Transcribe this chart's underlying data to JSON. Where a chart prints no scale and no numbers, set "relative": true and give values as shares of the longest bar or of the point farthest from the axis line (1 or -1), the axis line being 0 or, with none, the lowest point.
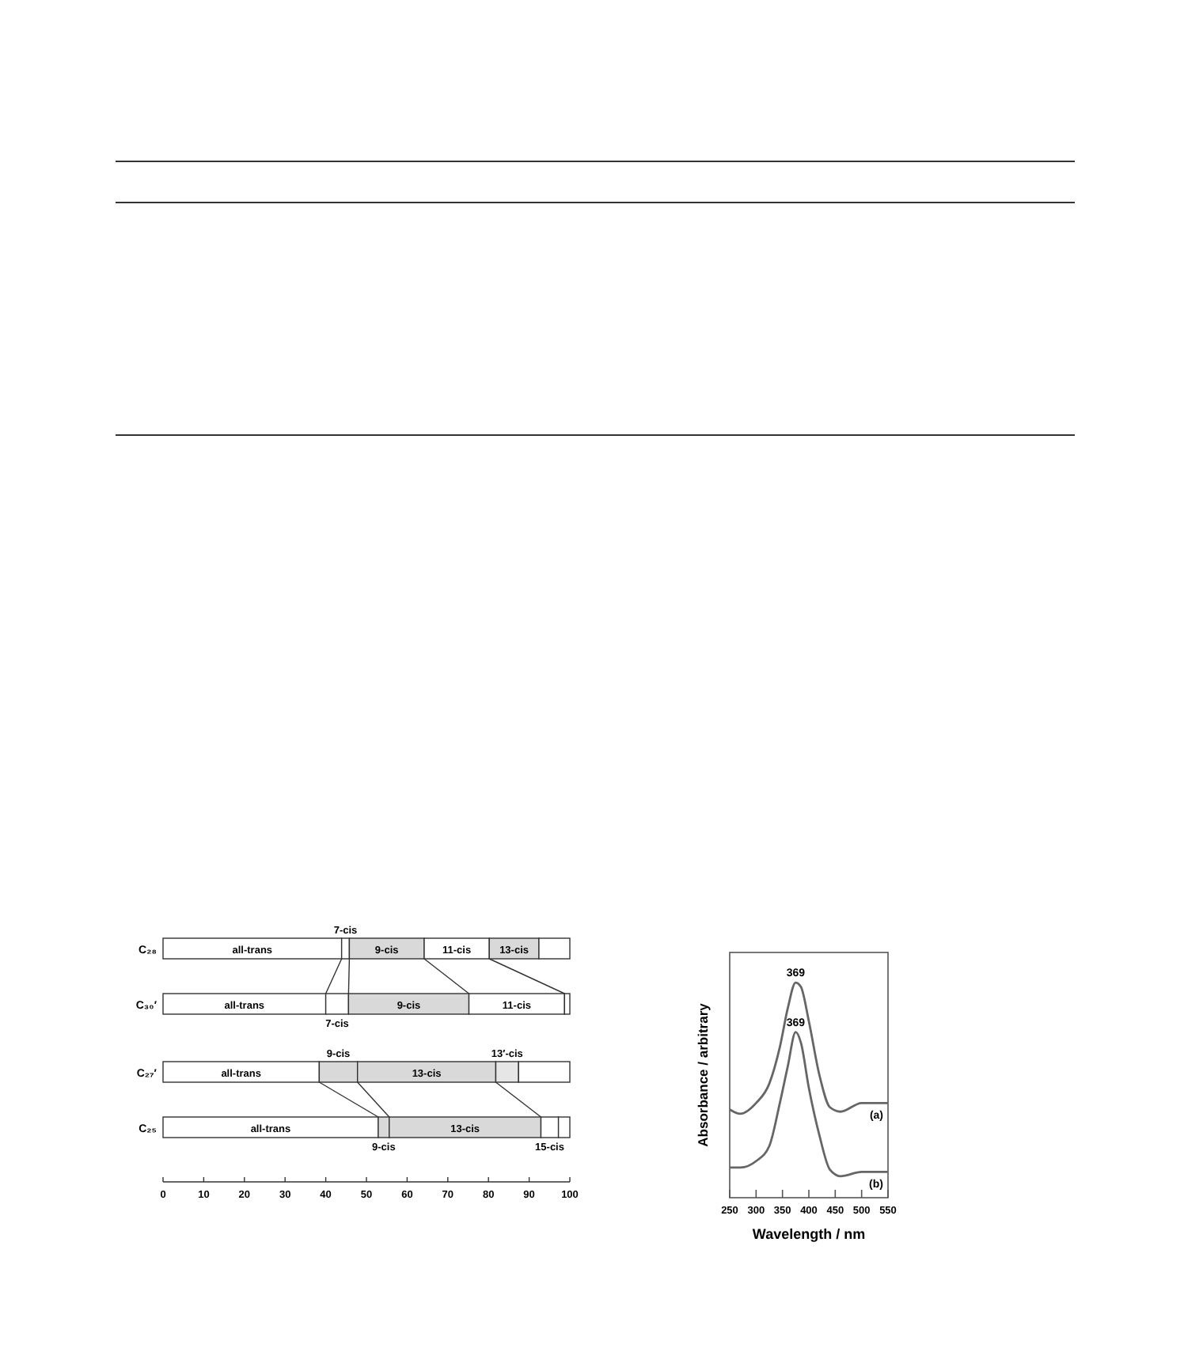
{
  "chart_data": [
    {
      "type": "bar",
      "orientation": "horizontal",
      "stacked": true,
      "categories": [
        "C₂₈",
        "C₃₀′",
        "C₂₇′",
        "C₂₅"
      ],
      "xlim": [
        0,
        100
      ],
      "xticks": [
        0,
        10,
        20,
        30,
        40,
        50,
        60,
        70,
        80,
        90,
        100
      ],
      "series": [
        {
          "name": "all-trans",
          "color": "#ffffff",
          "values": [
            43.9,
            40.0,
            38.4,
            52.9
          ]
        },
        {
          "name": "7-cis",
          "color": "#ffffff",
          "values": [
            1.9,
            5.6,
            null,
            null
          ]
        },
        {
          "name": "9-cis",
          "color": "#d9d9d9",
          "values": [
            18.4,
            29.6,
            9.4,
            2.7
          ]
        },
        {
          "name": "11-cis",
          "color": "#ffffff",
          "values": [
            16.0,
            23.5,
            null,
            null
          ]
        },
        {
          "name": "13-cis",
          "color": "#d9d9d9",
          "values": [
            12.2,
            null,
            34.0,
            37.3
          ]
        },
        {
          "name": "13′-cis",
          "color": "#e6e6e6",
          "values": [
            null,
            null,
            5.6,
            null
          ]
        },
        {
          "name": "15-cis",
          "color": "#ffffff",
          "values": [
            null,
            null,
            null,
            4.3
          ]
        },
        {
          "color": "#ffffff",
          "values": [
            7.6,
            1.3,
            12.6,
            2.8
          ]
        }
      ]
    },
    {
      "type": "line",
      "relative": true,
      "xlabel": "Wavelength / nm",
      "ylabel": "Absorbance / arbitrary",
      "xlim": [
        250,
        550
      ],
      "xticks": [
        250,
        300,
        350,
        400,
        450,
        500,
        550
      ],
      "x": [
        250,
        270,
        300,
        325,
        345,
        360,
        375,
        385,
        400,
        420,
        440,
        460,
        500,
        550
      ],
      "series": [
        {
          "name": "(a)",
          "color": "#666666",
          "values": [
            0.41,
            0.39,
            0.44,
            0.53,
            0.7,
            0.88,
            1.0,
            0.98,
            0.82,
            0.57,
            0.42,
            0.4,
            0.44,
            0.44
          ]
        },
        {
          "name": "(b)",
          "color": "#666666",
          "values": [
            0.14,
            0.14,
            0.17,
            0.24,
            0.44,
            0.61,
            0.77,
            0.72,
            0.51,
            0.29,
            0.13,
            0.1,
            0.12,
            0.12
          ]
        }
      ],
      "annotations": [
        {
          "text": "369",
          "x": 375,
          "y": 1.0
        },
        {
          "text": "369",
          "x": 375,
          "y": 0.77
        }
      ]
    }
  ]
}
